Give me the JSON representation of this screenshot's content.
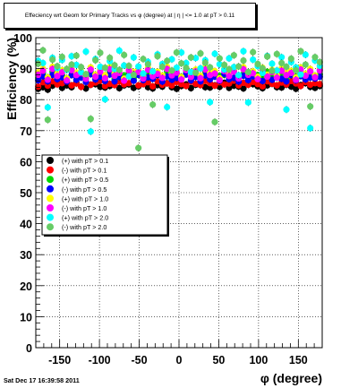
{
  "title": "Effeciency wrt Geom for Primary Tracks vs φ (degree) at |  η | <= 1.0 at pT > 0.11",
  "footer": "Sat Dec 17 16:39:58 2011",
  "chart_data": {
    "type": "scatter",
    "title": "Effeciency wrt Geom for Primary Tracks vs φ (degree) at |  η | <= 1.0 at pT > 0.11",
    "xlabel": "φ (degree)",
    "ylabel": "Efficiency (%)",
    "xlim": [
      -180,
      180
    ],
    "ylim": [
      0,
      100
    ],
    "xticks": [
      -150,
      -100,
      -50,
      0,
      50,
      100,
      150
    ],
    "yticks": [
      0,
      10,
      20,
      30,
      40,
      50,
      60,
      70,
      80,
      90,
      100
    ],
    "grid": true,
    "legend_position": "middle-left",
    "series": [
      {
        "name": "(+) with pT > 0.1",
        "color": "#000000",
        "marker": "circle",
        "x": [
          -177,
          -171,
          -165,
          -159,
          -153,
          -147,
          -141,
          -135,
          -129,
          -123,
          -117,
          -111,
          -105,
          -99,
          -93,
          -87,
          -81,
          -75,
          -69,
          -63,
          -57,
          -51,
          -45,
          -39,
          -33,
          -27,
          -21,
          -15,
          -9,
          -3,
          3,
          9,
          15,
          21,
          27,
          33,
          39,
          45,
          51,
          57,
          63,
          69,
          75,
          81,
          87,
          93,
          99,
          105,
          111,
          117,
          123,
          129,
          135,
          141,
          147,
          153,
          159,
          165,
          171,
          177
        ],
        "y": [
          83.5,
          84,
          83.2,
          84.5,
          85.2,
          83.8,
          84.6,
          84,
          85.5,
          84.2,
          83.6,
          84.8,
          85,
          84.1,
          83.9,
          84.4,
          85.2,
          83.7,
          84.6,
          84.9,
          83.8,
          84.3,
          85.1,
          84,
          83.6,
          84.7,
          84.2,
          85.3,
          84,
          83.5,
          84.4,
          84.9,
          83.7,
          84.8,
          85.2,
          84,
          83.9,
          84.6,
          84.1,
          85.4,
          83.8,
          84.5,
          84.2,
          83.6,
          84.9,
          85,
          84.3,
          83.7,
          84.6,
          85.1,
          84,
          83.9,
          84.8,
          84.2,
          83.5,
          84.7,
          85.3,
          84.1,
          83.8,
          84.4
        ]
      },
      {
        "name": "(-) with pT > 0.1",
        "color": "#ff0000",
        "marker": "circle",
        "x": [
          -177,
          -171,
          -165,
          -159,
          -153,
          -147,
          -141,
          -135,
          -129,
          -123,
          -117,
          -111,
          -105,
          -99,
          -93,
          -87,
          -81,
          -75,
          -69,
          -63,
          -57,
          -51,
          -45,
          -39,
          -33,
          -27,
          -21,
          -15,
          -9,
          -3,
          3,
          9,
          15,
          21,
          27,
          33,
          39,
          45,
          51,
          57,
          63,
          69,
          75,
          81,
          87,
          93,
          99,
          105,
          111,
          117,
          123,
          129,
          135,
          141,
          147,
          153,
          159,
          165,
          171,
          177
        ],
        "y": [
          84.2,
          85.6,
          84.5,
          85.9,
          84.9,
          85.3,
          86,
          84.6,
          85.2,
          84.1,
          85.7,
          84.8,
          85.5,
          86.1,
          84.4,
          85.1,
          84.7,
          85.8,
          84.9,
          85.3,
          86.2,
          84.6,
          85,
          85.6,
          84.3,
          85.9,
          84.8,
          85.2,
          84.6,
          85.7,
          85,
          84.4,
          85.8,
          85.1,
          84.7,
          86,
          85.3,
          84.5,
          85.6,
          84.9,
          85.2,
          86.1,
          84.6,
          85.4,
          84.8,
          85.7,
          85,
          84.3,
          85.9,
          85.1,
          84.6,
          85.5,
          84.9,
          86,
          85.2,
          84.4,
          85.7,
          84.8,
          85.3,
          85
        ]
      },
      {
        "name": "(+) with pT > 0.5",
        "color": "#00d800",
        "marker": "circle",
        "x": [
          -177,
          -171,
          -165,
          -159,
          -153,
          -147,
          -141,
          -135,
          -129,
          -123,
          -117,
          -111,
          -105,
          -99,
          -93,
          -87,
          -81,
          -75,
          -69,
          -63,
          -57,
          -51,
          -45,
          -39,
          -33,
          -27,
          -21,
          -15,
          -9,
          -3,
          3,
          9,
          15,
          21,
          27,
          33,
          39,
          45,
          51,
          57,
          63,
          69,
          75,
          81,
          87,
          93,
          99,
          105,
          111,
          117,
          123,
          129,
          135,
          141,
          147,
          153,
          159,
          165,
          171,
          177
        ],
        "y": [
          87,
          88.5,
          86.5,
          89,
          87.4,
          88,
          86.9,
          89.2,
          87.6,
          88.3,
          86.8,
          88.9,
          87.2,
          88.6,
          87,
          89.1,
          86.7,
          88.2,
          87.8,
          88.7,
          86.9,
          89,
          87.3,
          88.4,
          87.1,
          88.8,
          87.5,
          89.2,
          86.8,
          88.1,
          87.4,
          88.9,
          87.6,
          88.3,
          86.9,
          89.1,
          87.2,
          88.5,
          87.7,
          88,
          86.6,
          89.3,
          87.5,
          88.2,
          87.1,
          88.8,
          87.9,
          86.9,
          89,
          87.3,
          88.6,
          87.8,
          86.7,
          89.1,
          87.4,
          88.4,
          87,
          88.9,
          87.6,
          88.1
        ]
      },
      {
        "name": "(-) with pT > 0.5",
        "color": "#0000ff",
        "marker": "circle",
        "x": [
          -177,
          -171,
          -165,
          -159,
          -153,
          -147,
          -141,
          -135,
          -129,
          -123,
          -117,
          -111,
          -105,
          -99,
          -93,
          -87,
          -81,
          -75,
          -69,
          -63,
          -57,
          -51,
          -45,
          -39,
          -33,
          -27,
          -21,
          -15,
          -9,
          -3,
          3,
          9,
          15,
          21,
          27,
          33,
          39,
          45,
          51,
          57,
          63,
          69,
          75,
          81,
          87,
          93,
          99,
          105,
          111,
          117,
          123,
          129,
          135,
          141,
          147,
          153,
          159,
          165,
          171,
          177
        ],
        "y": [
          86.2,
          87.5,
          85.9,
          88,
          86.6,
          87.2,
          85.8,
          87.9,
          86.4,
          87.1,
          85.7,
          88.2,
          86.5,
          87.4,
          86,
          88.1,
          85.9,
          87.3,
          86.8,
          87.6,
          86.1,
          88,
          86.3,
          87.2,
          86.7,
          87.9,
          85.8,
          87.5,
          86.4,
          87,
          86.9,
          88.1,
          86.2,
          87.3,
          85.9,
          87.8,
          86.5,
          87.4,
          86.1,
          88.2,
          86.6,
          87,
          85.8,
          87.7,
          86.3,
          87.5,
          86.9,
          86,
          88,
          86.4,
          87.3,
          86.7,
          85.9,
          87.9,
          86.2,
          87.6,
          86.5,
          87.1,
          86.8,
          87.4
        ]
      },
      {
        "name": "(+) with pT > 1.0",
        "color": "#ffff00",
        "marker": "circle",
        "x": [
          -177,
          -171,
          -165,
          -159,
          -153,
          -147,
          -141,
          -135,
          -129,
          -123,
          -117,
          -111,
          -105,
          -99,
          -93,
          -87,
          -81,
          -75,
          -69,
          -63,
          -57,
          -51,
          -45,
          -39,
          -33,
          -27,
          -21,
          -15,
          -9,
          -3,
          3,
          9,
          15,
          21,
          27,
          33,
          39,
          45,
          51,
          57,
          63,
          69,
          75,
          81,
          87,
          93,
          99,
          105,
          111,
          117,
          123,
          129,
          135,
          141,
          147,
          153,
          159,
          165,
          171,
          177
        ],
        "y": [
          88.8,
          90,
          87.2,
          90.6,
          88.3,
          89.5,
          86.9,
          90.2,
          88.7,
          89.1,
          87.6,
          90.4,
          88.1,
          89.8,
          87.9,
          90.5,
          88.4,
          89.3,
          86.8,
          90.1,
          88.9,
          89.6,
          87.5,
          90.3,
          88.2,
          89,
          87.8,
          90.6,
          88.6,
          89.4,
          87.3,
          90.2,
          88,
          89.7,
          87.7,
          90.4,
          88.5,
          89.2,
          86.9,
          90,
          88.3,
          89.8,
          87.6,
          90.5,
          88.8,
          89.1,
          87.4,
          90.3,
          88.1,
          89.6,
          87.9,
          90.1,
          88.7,
          89.3,
          87.2,
          90.4,
          88.4,
          89.9,
          87.8,
          90.2
        ]
      },
      {
        "name": "(-) with pT > 1.0",
        "color": "#ff00ff",
        "marker": "circle",
        "x": [
          -177,
          -171,
          -165,
          -159,
          -153,
          -147,
          -141,
          -135,
          -129,
          -123,
          -117,
          -111,
          -105,
          -99,
          -93,
          -87,
          -81,
          -75,
          -69,
          -63,
          -57,
          -51,
          -45,
          -39,
          -33,
          -27,
          -21,
          -15,
          -9,
          -3,
          3,
          9,
          15,
          21,
          27,
          33,
          39,
          45,
          51,
          57,
          63,
          69,
          75,
          81,
          87,
          93,
          99,
          105,
          111,
          117,
          123,
          129,
          135,
          141,
          147,
          153,
          159,
          165,
          171,
          177
        ],
        "y": [
          88,
          89.3,
          86.4,
          89.9,
          87.6,
          88.8,
          86.2,
          89.5,
          87.9,
          88.5,
          86.7,
          89.7,
          87.4,
          89,
          86.9,
          89.8,
          87.7,
          88.6,
          86.1,
          89.4,
          88.2,
          88.9,
          86.8,
          89.6,
          87.5,
          88.3,
          87,
          89.9,
          87.8,
          88.7,
          86.5,
          89.5,
          87.3,
          89.1,
          86.9,
          89.7,
          87.9,
          88.4,
          86.3,
          89.2,
          87.6,
          89,
          86.8,
          89.8,
          88,
          88.5,
          86.6,
          89.6,
          87.4,
          88.9,
          87.1,
          89.3,
          87.9,
          88.6,
          86.4,
          89.7,
          87.7,
          89.1,
          87.2,
          89.4
        ]
      },
      {
        "name": "(+) with pT > 2.0",
        "color": "#00ffff",
        "marker": "circle",
        "x": [
          -177,
          -171,
          -165,
          -159,
          -153,
          -147,
          -141,
          -135,
          -129,
          -123,
          -117,
          -111,
          -105,
          -99,
          -93,
          -87,
          -81,
          -75,
          -69,
          -63,
          -57,
          -51,
          -45,
          -39,
          -33,
          -27,
          -21,
          -15,
          -9,
          -3,
          3,
          9,
          15,
          21,
          27,
          33,
          39,
          45,
          51,
          57,
          63,
          69,
          75,
          81,
          87,
          93,
          99,
          105,
          111,
          117,
          123,
          129,
          135,
          141,
          147,
          153,
          159,
          165,
          171,
          177
        ],
        "y": [
          92.5,
          91.8,
          77.5,
          93.5,
          90.2,
          92.8,
          89.6,
          94,
          91.2,
          88.8,
          95.5,
          69.7,
          93.1,
          90.6,
          80.1,
          92.4,
          89.9,
          95.8,
          91,
          87.5,
          93.6,
          90.7,
          88.4,
          92.2,
          89.1,
          94.6,
          91.5,
          77.6,
          93,
          90.3,
          95.2,
          91.8,
          88.9,
          93.4,
          90.1,
          92.7,
          79.2,
          94.8,
          91.4,
          89.7,
          93.3,
          90.5,
          87.9,
          95.6,
          79.1,
          92.9,
          90.8,
          88.6,
          94.1,
          91.6,
          89.4,
          93.7,
          76.8,
          92.1,
          90.4,
          88.1,
          94.5,
          70.8,
          92.6,
          90.9
        ]
      },
      {
        "name": "(-) with pT > 2.0",
        "color": "#66cc66",
        "marker": "circle",
        "x": [
          -177,
          -171,
          -165,
          -159,
          -153,
          -147,
          -141,
          -135,
          -129,
          -123,
          -117,
          -111,
          -105,
          -99,
          -93,
          -87,
          -81,
          -75,
          -69,
          -63,
          -57,
          -51,
          -45,
          -39,
          -33,
          -27,
          -21,
          -15,
          -9,
          -3,
          3,
          9,
          15,
          21,
          27,
          33,
          39,
          45,
          51,
          57,
          63,
          69,
          75,
          81,
          87,
          93,
          99,
          105,
          111,
          117,
          123,
          129,
          135,
          141,
          147,
          153,
          159,
          165,
          171,
          177
        ],
        "y": [
          91.6,
          95.9,
          73.5,
          92.9,
          90.8,
          93.8,
          89.9,
          91.3,
          94.2,
          90.5,
          88.2,
          73.8,
          92.7,
          95.1,
          90.3,
          93.5,
          91.1,
          89.6,
          94.4,
          90.9,
          88,
          64.4,
          93.1,
          91.4,
          78.4,
          94,
          90.6,
          92.5,
          89.4,
          95.2,
          91.7,
          90.2,
          93.6,
          88.7,
          94.9,
          91.9,
          90.4,
          72.8,
          93.3,
          91.2,
          89.8,
          94.3,
          90.7,
          92.6,
          88.9,
          95.3,
          91.5,
          90.1,
          93.9,
          89.3,
          94.7,
          91.8,
          90.6,
          93.2,
          89.5,
          95.6,
          91.3,
          77.8,
          93.7,
          92.1
        ]
      }
    ]
  }
}
